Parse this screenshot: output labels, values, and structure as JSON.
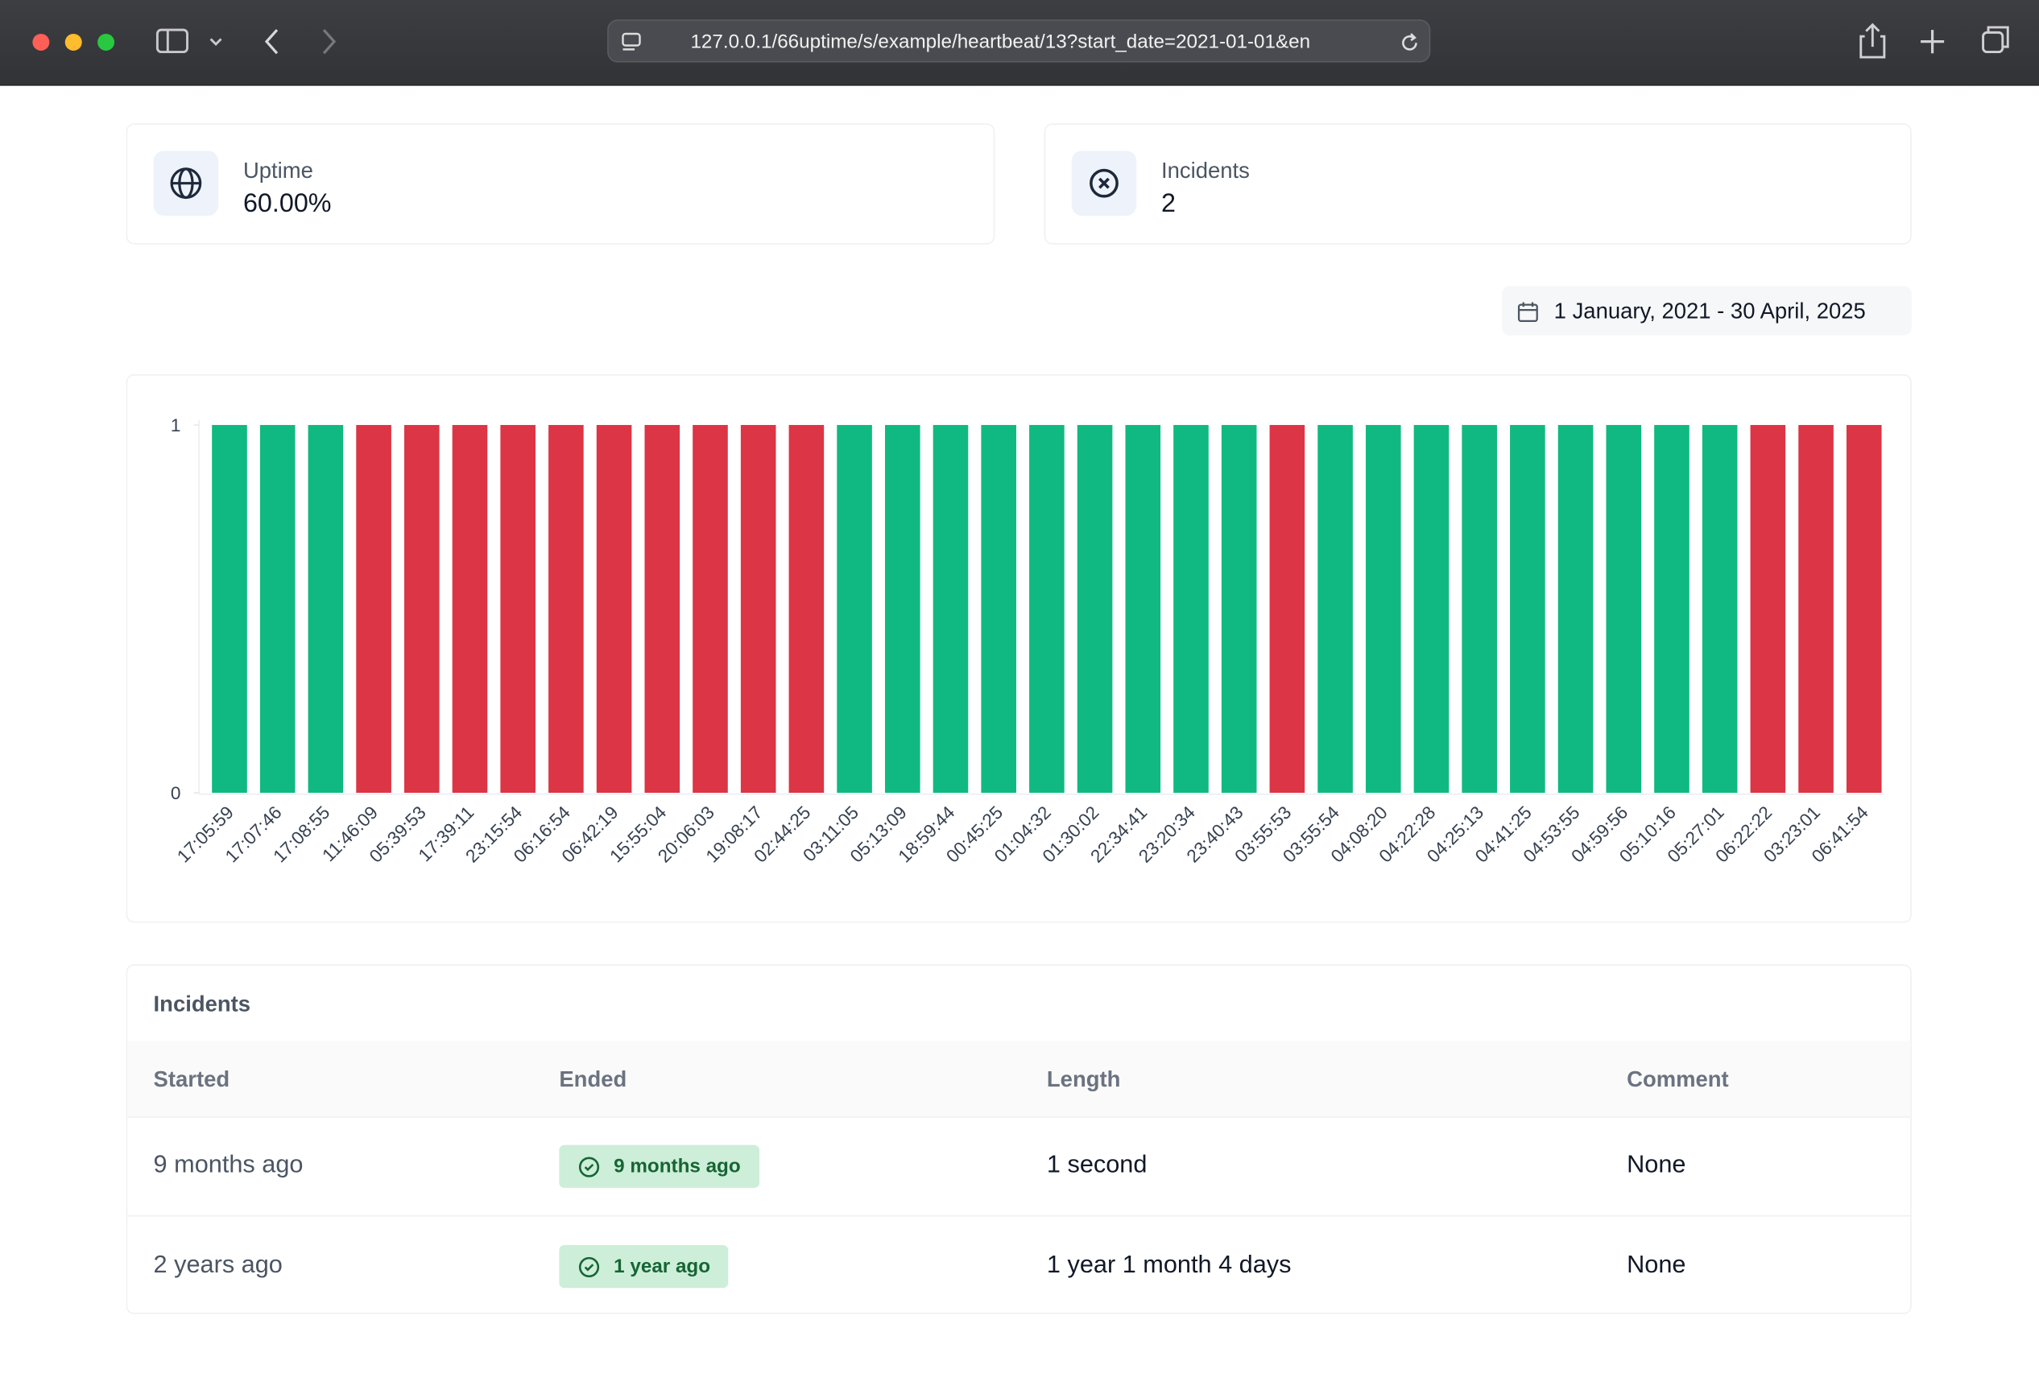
{
  "browser": {
    "url": "127.0.0.1/66uptime/s/example/heartbeat/13?start_date=2021-01-01&en"
  },
  "stats": [
    {
      "label": "Uptime",
      "value": "60.00%"
    },
    {
      "label": "Incidents",
      "value": "2"
    }
  ],
  "date_range": "1 January, 2021 - 30 April, 2025",
  "chart_data": {
    "type": "bar",
    "categories": [
      "17:05:59",
      "17:07:46",
      "17:08:55",
      "11:46:09",
      "05:39:53",
      "17:39:11",
      "23:15:54",
      "06:16:54",
      "06:42:19",
      "15:55:04",
      "20:06:03",
      "19:08:17",
      "02:44:25",
      "03:11:05",
      "05:13:09",
      "18:59:44",
      "00:45:25",
      "01:04:32",
      "01:30:02",
      "22:34:41",
      "23:20:34",
      "23:40:43",
      "03:55:53",
      "03:55:54",
      "04:08:20",
      "04:22:28",
      "04:25:13",
      "04:41:25",
      "04:53:55",
      "04:59:56",
      "05:10:16",
      "05:27:01",
      "06:22:22",
      "03:23:01",
      "06:41:54"
    ],
    "values": [
      1,
      1,
      1,
      1,
      1,
      1,
      1,
      1,
      1,
      1,
      1,
      1,
      1,
      1,
      1,
      1,
      1,
      1,
      1,
      1,
      1,
      1,
      1,
      1,
      1,
      1,
      1,
      1,
      1,
      1,
      1,
      1,
      1,
      1,
      1
    ],
    "colors": [
      "#10b981",
      "#10b981",
      "#10b981",
      "#dc3545",
      "#dc3545",
      "#dc3545",
      "#dc3545",
      "#dc3545",
      "#dc3545",
      "#dc3545",
      "#dc3545",
      "#dc3545",
      "#dc3545",
      "#10b981",
      "#10b981",
      "#10b981",
      "#10b981",
      "#10b981",
      "#10b981",
      "#10b981",
      "#10b981",
      "#10b981",
      "#dc3545",
      "#10b981",
      "#10b981",
      "#10b981",
      "#10b981",
      "#10b981",
      "#10b981",
      "#10b981",
      "#10b981",
      "#10b981",
      "#dc3545",
      "#dc3545",
      "#dc3545"
    ],
    "ylim": [
      0,
      1
    ],
    "yticks": [
      0,
      1
    ]
  },
  "incidents": {
    "title": "Incidents",
    "columns": [
      "Started",
      "Ended",
      "Length",
      "Comment"
    ],
    "rows": [
      [
        "9 months ago",
        "9 months ago",
        "1 second",
        "None"
      ],
      [
        "2 years ago",
        "1 year ago",
        "1 year 1 month 4 days",
        "None"
      ]
    ]
  }
}
